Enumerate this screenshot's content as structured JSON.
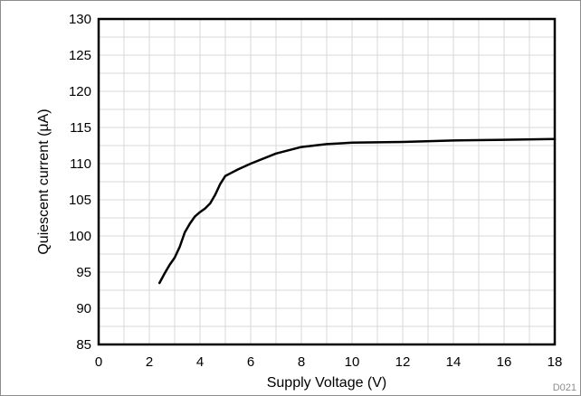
{
  "chart_data": {
    "type": "line",
    "title": "",
    "xlabel": "Supply Voltage (V)",
    "ylabel": "Quiescent current (µA)",
    "xlim": [
      0,
      18
    ],
    "ylim": [
      85,
      130
    ],
    "x_ticks": [
      0,
      2,
      4,
      6,
      8,
      10,
      12,
      14,
      16,
      18
    ],
    "y_ticks": [
      85,
      90,
      95,
      100,
      105,
      110,
      115,
      120,
      125,
      130
    ],
    "x_minor_step": 1,
    "y_minor_step": 2.5,
    "grid": true,
    "legend": "none",
    "series": [
      {
        "x": [
          2.4,
          2.6,
          2.8,
          3.0,
          3.2,
          3.4,
          3.6,
          3.8,
          4.0,
          4.2,
          4.4,
          4.6,
          4.8,
          5.0,
          5.5,
          6.0,
          7.0,
          8.0,
          9.0,
          10.0,
          12.0,
          14.0,
          16.0,
          18.0
        ],
        "y": [
          93.5,
          94.8,
          96.0,
          97.0,
          98.5,
          100.5,
          101.7,
          102.7,
          103.3,
          103.8,
          104.5,
          105.7,
          107.2,
          108.3,
          109.2,
          110.0,
          111.4,
          112.3,
          112.7,
          112.9,
          113.0,
          113.2,
          113.3,
          113.4
        ],
        "color": "#000000"
      }
    ],
    "figure_code": "D021"
  }
}
